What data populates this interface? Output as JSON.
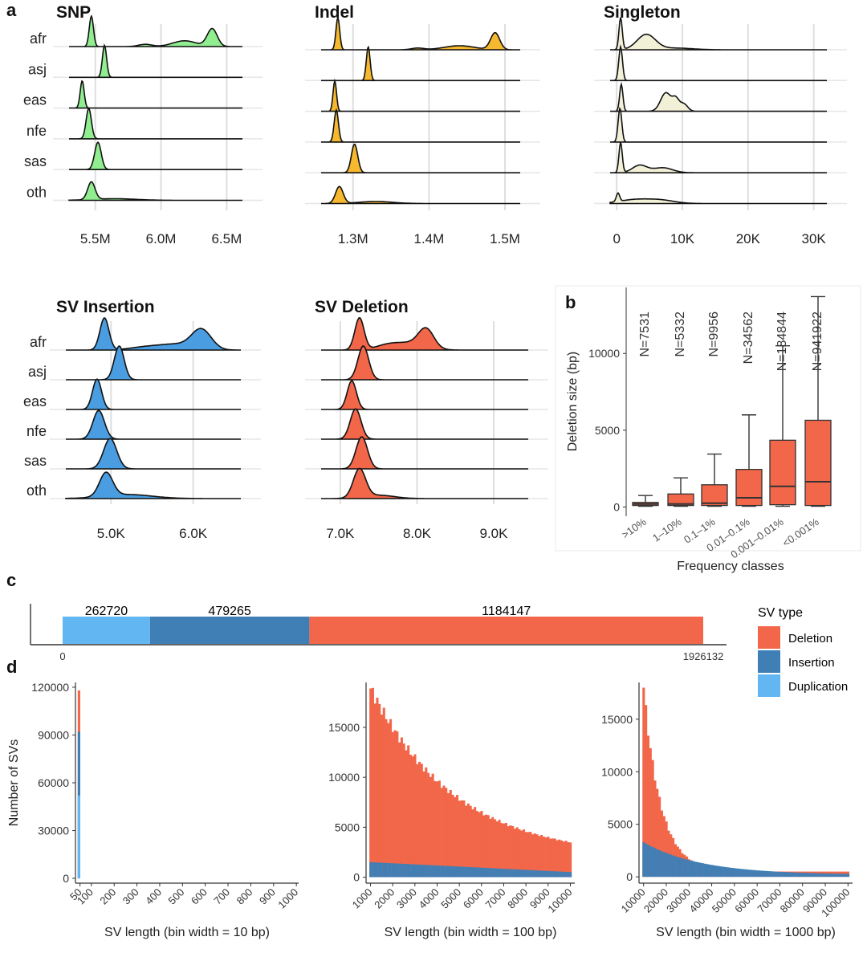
{
  "panel_labels": {
    "a": "a",
    "b": "b",
    "c": "c",
    "d": "d"
  },
  "colors": {
    "snp": "#90ee90",
    "indel": "#f5b82e",
    "singleton": "#f3f0d8",
    "sv_insertion": "#4a9de0",
    "sv_deletion": "#f26649",
    "deletion": "#f26649",
    "insertion": "#3f7fb6",
    "duplication": "#62b6f2",
    "box": "#f26649"
  },
  "chart_data": [
    {
      "type": "ridgeline",
      "title": "SNP",
      "rows": [
        "afr",
        "asj",
        "eas",
        "nfe",
        "sas",
        "oth"
      ],
      "tick_labels": [
        "5.5M",
        "6.0M",
        "6.5M"
      ],
      "ticks": [
        5500000,
        6000000,
        6500000
      ],
      "xlim": [
        5300000,
        6620000
      ],
      "peaks": [
        [
          [
            5470000,
            0.95,
            16000
          ],
          [
            5880000,
            0.07,
            50000
          ],
          [
            6180000,
            0.18,
            90000
          ],
          [
            6390000,
            0.55,
            38000
          ]
        ],
        [
          [
            5570000,
            1.0,
            16000
          ]
        ],
        [
          [
            5400000,
            0.85,
            15000
          ]
        ],
        [
          [
            5450000,
            0.95,
            20000
          ]
        ],
        [
          [
            5520000,
            0.85,
            25000
          ]
        ],
        [
          [
            5470000,
            0.55,
            28000
          ],
          [
            5650000,
            0.05,
            160000
          ]
        ]
      ]
    },
    {
      "type": "ridgeline",
      "title": "Indel",
      "rows": [
        "afr",
        "asj",
        "eas",
        "nfe",
        "sas",
        "oth"
      ],
      "tick_labels": [
        "1.3M",
        "1.4M",
        "1.5M"
      ],
      "ticks": [
        1300000,
        1400000,
        1500000
      ],
      "xlim": [
        1258000,
        1520000
      ],
      "peaks": [
        [
          [
            1280000,
            0.95,
            2500
          ],
          [
            1385000,
            0.05,
            8000
          ],
          [
            1440000,
            0.12,
            20000
          ],
          [
            1487000,
            0.5,
            6000
          ]
        ],
        [
          [
            1320000,
            1.0,
            2500
          ]
        ],
        [
          [
            1276000,
            0.9,
            2300
          ]
        ],
        [
          [
            1278000,
            0.95,
            2800
          ]
        ],
        [
          [
            1302000,
            0.85,
            4200
          ]
        ],
        [
          [
            1282000,
            0.5,
            5000
          ],
          [
            1330000,
            0.06,
            22000
          ]
        ]
      ]
    },
    {
      "type": "ridgeline",
      "title": "Singleton",
      "rows": [
        "afr",
        "asj",
        "eas",
        "nfe",
        "sas",
        "oth"
      ],
      "tick_labels": [
        "0",
        "10K",
        "20K",
        "30K"
      ],
      "ticks": [
        0,
        10000,
        20000,
        30000
      ],
      "xlim": [
        -1000,
        32000
      ],
      "peaks": [
        [
          [
            600,
            0.95,
            250
          ],
          [
            4500,
            0.45,
            1400
          ],
          [
            9000,
            0.05,
            2500
          ]
        ],
        [
          [
            600,
            1.0,
            280
          ]
        ],
        [
          [
            700,
            0.8,
            250
          ],
          [
            7500,
            0.55,
            800
          ],
          [
            9000,
            0.32,
            500
          ],
          [
            10200,
            0.22,
            600
          ]
        ],
        [
          [
            500,
            1.0,
            280
          ]
        ],
        [
          [
            600,
            0.9,
            250
          ],
          [
            3500,
            0.22,
            1100
          ],
          [
            7000,
            0.15,
            1500
          ]
        ],
        [
          [
            200,
            0.25,
            250
          ],
          [
            3000,
            0.12,
            2500
          ],
          [
            7000,
            0.08,
            2000
          ]
        ]
      ]
    },
    {
      "type": "ridgeline",
      "title": "SV Insertion",
      "rows": [
        "afr",
        "asj",
        "eas",
        "nfe",
        "sas",
        "oth"
      ],
      "tick_labels": [
        "5.0K",
        "6.0K"
      ],
      "ticks": [
        5000,
        6000
      ],
      "xlim": [
        4450,
        6580
      ],
      "peaks": [
        [
          [
            4920,
            0.95,
            55
          ],
          [
            5450,
            0.1,
            200
          ],
          [
            5800,
            0.15,
            180
          ],
          [
            6100,
            0.6,
            120
          ]
        ],
        [
          [
            5100,
            1.0,
            60
          ]
        ],
        [
          [
            4830,
            0.9,
            55
          ]
        ],
        [
          [
            4850,
            0.85,
            70
          ]
        ],
        [
          [
            4990,
            0.9,
            80
          ]
        ],
        [
          [
            4940,
            0.7,
            80
          ],
          [
            5200,
            0.12,
            300
          ]
        ]
      ]
    },
    {
      "type": "ridgeline",
      "title": "SV Deletion",
      "rows": [
        "afr",
        "asj",
        "eas",
        "nfe",
        "sas",
        "oth"
      ],
      "tick_labels": [
        "7.0K",
        "8.0K",
        "9.0K"
      ],
      "ticks": [
        7000,
        8000,
        9000
      ],
      "xlim": [
        6750,
        9450
      ],
      "peaks": [
        [
          [
            7250,
            0.95,
            60
          ],
          [
            7600,
            0.12,
            150
          ],
          [
            7900,
            0.2,
            200
          ],
          [
            8120,
            0.55,
            100
          ]
        ],
        [
          [
            7300,
            1.0,
            70
          ]
        ],
        [
          [
            7150,
            0.85,
            60
          ]
        ],
        [
          [
            7200,
            0.9,
            70
          ]
        ],
        [
          [
            7280,
            0.95,
            75
          ]
        ],
        [
          [
            7250,
            0.85,
            80
          ],
          [
            7500,
            0.1,
            200
          ]
        ]
      ]
    },
    {
      "type": "box",
      "ylabel": "Deletion size (bp)",
      "xlabel": "Frequency classes",
      "categories": [
        ">10%",
        "1–10%",
        "0.1–1%",
        "0.01–0.1%",
        "0.001–0.01%",
        "<0.001%"
      ],
      "n_labels": [
        "N=7531",
        "N=5332",
        "N=9956",
        "N=34562",
        "N=184844",
        "N=941922"
      ],
      "yticks": [
        0,
        5000,
        10000
      ],
      "ylim": [
        -600,
        14300
      ],
      "boxes": [
        {
          "min": 50,
          "q1": 100,
          "median": 200,
          "q3": 300,
          "max": 750
        },
        {
          "min": 50,
          "q1": 100,
          "median": 200,
          "q3": 850,
          "max": 1900
        },
        {
          "min": 50,
          "q1": 100,
          "median": 250,
          "q3": 1450,
          "max": 3450
        },
        {
          "min": 50,
          "q1": 100,
          "median": 600,
          "q3": 2450,
          "max": 6000
        },
        {
          "min": 50,
          "q1": 150,
          "median": 1350,
          "q3": 4350,
          "max": 10500
        },
        {
          "min": 50,
          "q1": 100,
          "median": 1650,
          "q3": 5650,
          "max": 13700
        }
      ]
    },
    {
      "type": "stacked_bar_horizontal",
      "segments": [
        {
          "name": "Duplication",
          "value": 262720,
          "label": "262720"
        },
        {
          "name": "Insertion",
          "value": 479265,
          "label": "479265"
        },
        {
          "name": "Deletion",
          "value": 1184147,
          "label": "1184147"
        }
      ],
      "axis_labels": [
        "0",
        "1926132"
      ],
      "xlim": [
        0,
        1926132
      ]
    },
    {
      "type": "stacked_histogram",
      "xlabel": "SV length (bin width = 10 bp)",
      "ylabel": "Number of SVs",
      "xlim": [
        30,
        1010
      ],
      "ylim": [
        -3000,
        123000
      ],
      "yticks": [
        0,
        30000,
        60000,
        90000,
        120000
      ],
      "ytick_labels": [
        "0",
        "30000",
        "60000",
        "90000",
        "120000"
      ],
      "xticks": [
        50,
        100,
        200,
        300,
        400,
        500,
        600,
        700,
        800,
        900,
        1000
      ],
      "xtick_labels": [
        "50",
        "100",
        "200",
        "300",
        "400",
        "500",
        "600",
        "700",
        "800",
        "900",
        "1000"
      ]
    },
    {
      "type": "stacked_histogram",
      "xlabel": "SV length (bin width = 100 bp)",
      "xlim": [
        800,
        10200
      ],
      "ylim": [
        -600,
        19500
      ],
      "yticks": [
        0,
        5000,
        10000,
        15000
      ],
      "ytick_labels": [
        "0",
        "5000",
        "10000",
        "15000"
      ],
      "xticks": [
        1000,
        2000,
        3000,
        4000,
        5000,
        6000,
        7000,
        8000,
        9000,
        10000
      ],
      "xtick_labels": [
        "1000",
        "2000",
        "3000",
        "4000",
        "5000",
        "6000",
        "7000",
        "8000",
        "9000",
        "10000"
      ]
    },
    {
      "type": "stacked_histogram",
      "xlabel": "SV length (bin width = 1000 bp)",
      "xlim": [
        8000,
        102000
      ],
      "ylim": [
        -600,
        18500
      ],
      "yticks": [
        0,
        5000,
        10000,
        15000
      ],
      "ytick_labels": [
        "0",
        "5000",
        "10000",
        "15000"
      ],
      "xticks": [
        10000,
        20000,
        30000,
        40000,
        50000,
        60000,
        70000,
        80000,
        90000,
        100000
      ],
      "xtick_labels": [
        "10000",
        "20000",
        "30000",
        "40000",
        "50000",
        "60000",
        "70000",
        "80000",
        "90000",
        "100000"
      ]
    }
  ],
  "legend": {
    "title": "SV type",
    "items": [
      {
        "label": "Deletion",
        "color": "#f26649"
      },
      {
        "label": "Insertion",
        "color": "#3f7fb6"
      },
      {
        "label": "Duplication",
        "color": "#62b6f2"
      }
    ]
  }
}
